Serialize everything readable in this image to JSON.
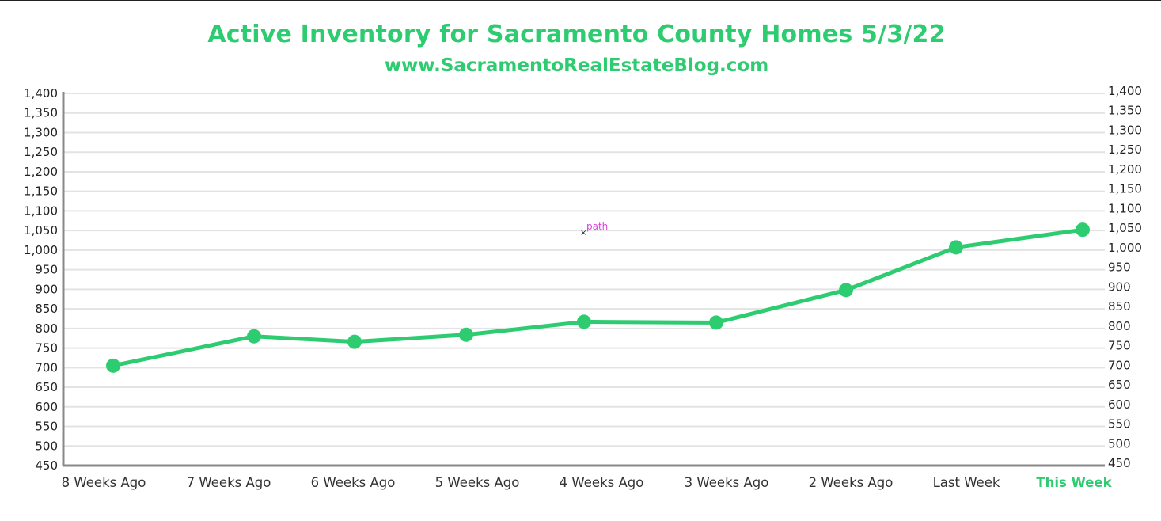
{
  "title": "Active Inventory for Sacramento County Homes 5/3/22",
  "subtitle": "www.SacramentoRealEstateBlog.com",
  "colors": {
    "accent": "#2ecc71",
    "axis": "#888888",
    "grid": "#e3e3e3"
  },
  "chart_data": {
    "type": "line",
    "categories": [
      "8 Weeks Ago",
      "7 Weeks Ago",
      "6 Weeks Ago",
      "5 Weeks Ago",
      "4 Weeks Ago",
      "3 Weeks Ago",
      "2 Weeks Ago",
      "Last Week",
      "This Week"
    ],
    "highlight_category": "This Week",
    "series": [
      {
        "values": [
          705,
          780,
          766,
          784,
          817,
          815,
          898,
          1007,
          1052
        ]
      }
    ],
    "ylim": [
      450,
      1400
    ],
    "yticks": [
      450,
      500,
      550,
      600,
      650,
      700,
      750,
      800,
      850,
      900,
      950,
      1000,
      1050,
      1100,
      1150,
      1200,
      1250,
      1300,
      1350,
      1400
    ],
    "ytick_labels": [
      "450",
      "500",
      "550",
      "600",
      "650",
      "700",
      "750",
      "800",
      "850",
      "900",
      "950",
      "1,000",
      "1,050",
      "1,100",
      "1,150",
      "1,200",
      "1,250",
      "1,300",
      "1,350",
      "1,400"
    ],
    "grid": true,
    "secondary_y_axis": true,
    "annotation": {
      "text": "path"
    }
  }
}
